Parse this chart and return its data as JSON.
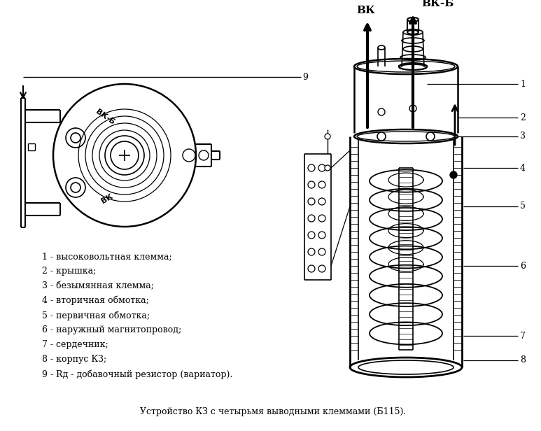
{
  "title": "Устройство КЗ с четырьмя выводными клеммами (Б115).",
  "bg_color": "#ffffff",
  "legend_items": [
    "1 - высоковольтная клемма;",
    "2 - крышка;",
    "3 - безымянная клемма;",
    "4 - вторичная обмотка;",
    "5 - первичная обмотка;",
    "6 - наружный магнитопровод;",
    "7 - сердечник;",
    "8 - корпус КЗ;",
    "9 - Rд - добавочный резистор (вариатор)."
  ],
  "label_vk": "ВК",
  "label_vkb": "ВК-Б"
}
